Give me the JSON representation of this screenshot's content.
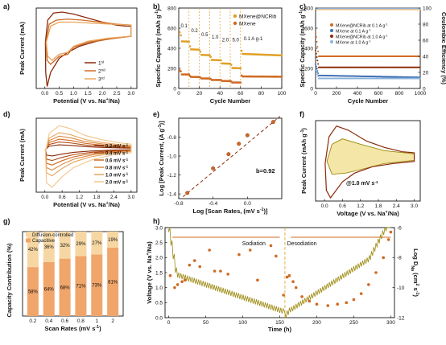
{
  "colors": {
    "dark": "#8a2a08",
    "mid": "#cf6a22",
    "light": "#e9a35a",
    "pale": "#f4c58c",
    "gold": "#e0a028",
    "olive": "#9c8a10",
    "blue": "#3a6fb0",
    "lightblue": "#8bb3dc",
    "fill": "#f3e6a6"
  },
  "chart_data": [
    {
      "panel": "a",
      "type": "line",
      "xlabel": "Potential (V vs. Na+/Na)",
      "ylabel": "Peak Current (mA)",
      "xlim": [
        -0.3,
        3.2
      ],
      "xticks": [
        "0.0",
        "0.5",
        "1.0",
        "1.5",
        "2.0",
        "2.5",
        "3.0"
      ],
      "series": [
        {
          "name": "1st"
        },
        {
          "name": "2nd"
        },
        {
          "name": "3rd"
        }
      ]
    },
    {
      "panel": "b",
      "type": "scatter",
      "xlabel": "Cycle Number",
      "ylabel": "Specific Capacity (mAh g-1)",
      "xlim": [
        0,
        100
      ],
      "ylim": [
        0,
        800
      ],
      "xticks": [
        "0",
        "20",
        "40",
        "60",
        "80",
        "100"
      ],
      "yticks": [
        "0",
        "200",
        "400",
        "600",
        "800"
      ],
      "rate_labels": [
        "0.1",
        "0.2",
        "0.5",
        "1.0",
        "2.0",
        "5.0",
        "0.1 A g-1"
      ],
      "series": [
        {
          "name": "MXene@NCRib",
          "segments": [
            [
              0,
              10,
              470
            ],
            [
              10,
              20,
              390
            ],
            [
              20,
              30,
              335
            ],
            [
              30,
              40,
              285
            ],
            [
              40,
              50,
              250
            ],
            [
              50,
              60,
              205
            ],
            [
              60,
              100,
              345
            ]
          ]
        },
        {
          "name": "MXene",
          "segments": [
            [
              0,
              10,
              140
            ],
            [
              10,
              20,
              115
            ],
            [
              20,
              30,
              100
            ],
            [
              30,
              40,
              85
            ],
            [
              40,
              50,
              75
            ],
            [
              50,
              60,
              60
            ],
            [
              60,
              100,
              120
            ]
          ]
        }
      ]
    },
    {
      "panel": "c",
      "type": "scatter",
      "xlabel": "Cycle Number",
      "ylabel": "Specific Capacity (mAh g-1)",
      "y2label": "Coulombic Efficiency (%)",
      "xlim": [
        0,
        1000
      ],
      "ylim": [
        0,
        800
      ],
      "y2lim": [
        0,
        100
      ],
      "xticks": [
        "0",
        "200",
        "400",
        "600",
        "800",
        "1000"
      ],
      "yticks": [
        "0",
        "200",
        "400",
        "600",
        "800"
      ],
      "y2ticks": [
        "0",
        "20",
        "40",
        "60",
        "80",
        "100"
      ],
      "series": [
        {
          "name": "MXene@NCRib at 0.1 A g-1",
          "values": [
            320
          ]
        },
        {
          "name": "MXene at 0.1 A g-1",
          "values": [
            130
          ]
        },
        {
          "name": "MXene@NCRib at 1.0 A g-1",
          "values": [
            210
          ]
        },
        {
          "name": "MXene at 1.0 A g-1",
          "values": [
            100
          ]
        }
      ]
    },
    {
      "panel": "d",
      "type": "line",
      "xlabel": "Potential (V vs. Na+/Na)",
      "ylabel": "Peak Current (mA)",
      "xticks": [
        "0.0",
        "0.6",
        "1.2",
        "1.8",
        "2.4",
        "3.0"
      ],
      "series": [
        {
          "name": "0.2 mV s-1"
        },
        {
          "name": "0.4 mV s-1"
        },
        {
          "name": "0.6 mV s-1"
        },
        {
          "name": "0.8 mV s-1"
        },
        {
          "name": "1.0 mV s-1"
        },
        {
          "name": "2.0 mV s-1"
        }
      ]
    },
    {
      "panel": "e",
      "type": "scatter",
      "xlabel": "Log [Scan Rates, (mV s-1)]",
      "ylabel": "Log [Peak Current, (A g-1)]",
      "xlim": [
        -0.8,
        0.4
      ],
      "ylim": [
        -1.45,
        -0.6
      ],
      "xticks": [
        "-0.8",
        "-0.4",
        "0.0"
      ],
      "yticks": [
        "-1.4",
        "-1.2",
        "-1.0",
        "-0.8"
      ],
      "x": [
        -0.7,
        -0.4,
        -0.22,
        -0.1,
        0.0,
        0.3
      ],
      "y": [
        -1.39,
        -1.13,
        -0.98,
        -0.87,
        -0.78,
        -0.64
      ],
      "annotation": "b=0.92"
    },
    {
      "panel": "f",
      "type": "line",
      "xlabel": "Voltage (V vs. Na+/Na)",
      "ylabel": "Peak Current (mAh g-1)",
      "xticks": [
        "0.0",
        "0.6",
        "1.2",
        "1.8",
        "2.4",
        "3.0"
      ],
      "annotation": "@1.0 mV s-1"
    },
    {
      "panel": "g",
      "type": "bar",
      "xlabel": "Scan Rates (mV s-1)",
      "ylabel": "Capacity Contribution (%)",
      "categories": [
        "0.2",
        "0.4",
        "0.6",
        "0.8",
        "1",
        "2"
      ],
      "series": [
        {
          "name": "Capacitive",
          "values": [
            58,
            64,
            68,
            71,
            73,
            81
          ]
        },
        {
          "name": "Diffusion-controlled",
          "values": [
            42,
            36,
            32,
            29,
            27,
            19
          ]
        }
      ]
    },
    {
      "panel": "h",
      "type": "line",
      "xlabel": "Time (h)",
      "ylabel": "Voltage (V vs. Na+/Na)",
      "y2label": "Log DNa (cm2 s-1)",
      "xlim": [
        -5,
        305
      ],
      "ylim": [
        0,
        3
      ],
      "y2lim": [
        -12,
        -6
      ],
      "xticks": [
        "0",
        "50",
        "100",
        "150",
        "200",
        "250",
        "300"
      ],
      "yticks": [
        "0.0",
        "0.5",
        "1.0",
        "1.5",
        "2.0",
        "2.5",
        "3.0"
      ],
      "y2ticks": [
        "-12",
        "-10",
        "-8",
        "-6"
      ],
      "regions": [
        "Sodiation",
        "Desodiation"
      ]
    }
  ],
  "text": {
    "panel_letters": [
      "a)",
      "b)",
      "c)",
      "d)",
      "e)",
      "f)",
      "g)",
      "h)"
    ],
    "a_legend": [
      "1st",
      "2nd",
      "3rd"
    ],
    "b_legend": [
      "MXene@NCRib",
      "MXene"
    ],
    "c_legend": [
      "MXene@NCRib at 0.1 A g-1",
      "MXene at 0.1 A g-1",
      "MXene@NCRib at 1.0 A g-1",
      "MXene at 1.0 A g-1"
    ],
    "d_legend": [
      "0.2 mV s-1",
      "0.4 mV s-1",
      "0.6 mV s-1",
      "0.8 mV s-1",
      "1.0 mV s-1",
      "2.0 mV s-1"
    ],
    "e_annotation": "b=0.92",
    "f_annotation": "@1.0 mV s-1",
    "g_legend": [
      "Diffusion-controlled",
      "Capacitive"
    ],
    "h_regions": [
      "Sodiation",
      "Desodiation"
    ]
  }
}
